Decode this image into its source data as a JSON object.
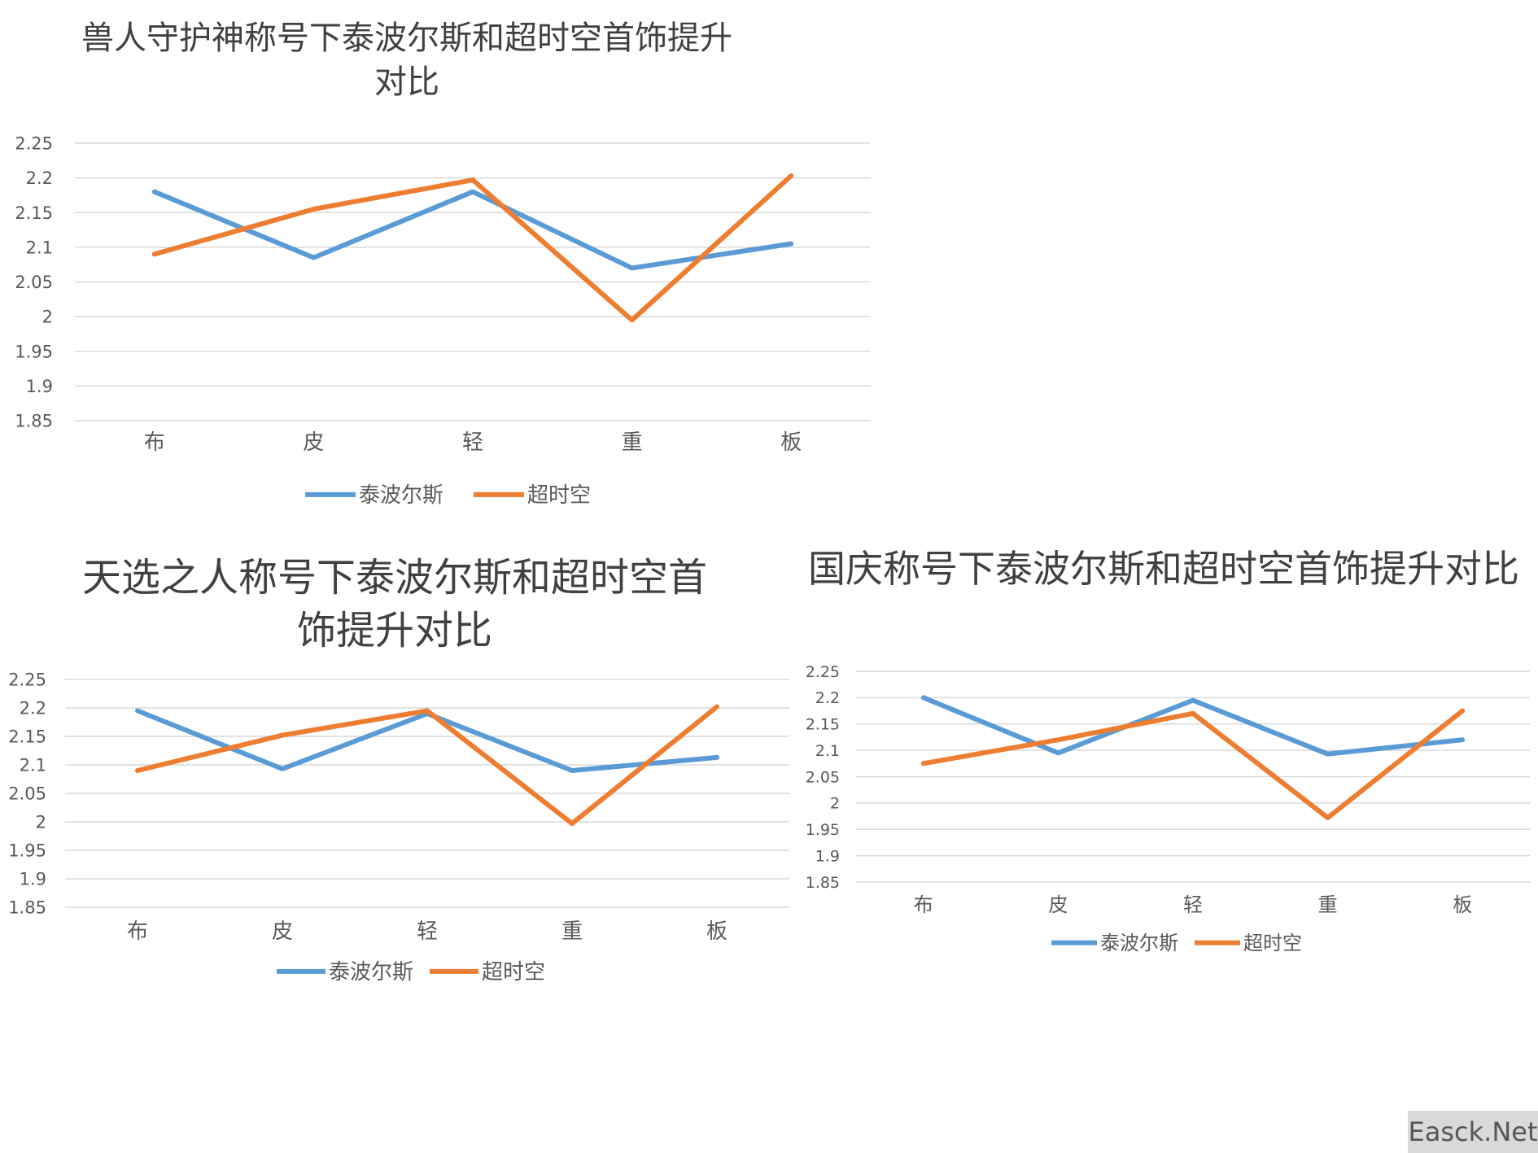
{
  "chart_data": [
    {
      "type": "line",
      "title": "兽人守护神称号下泰波尔斯和超时空首饰提升对比",
      "categories": [
        "布",
        "皮",
        "轻",
        "重",
        "板"
      ],
      "y_ticks": [
        "2.25",
        "2.2",
        "2.15",
        "2.1",
        "2.05",
        "2",
        "1.95",
        "1.9",
        "1.85"
      ],
      "ylim": [
        1.85,
        2.25
      ],
      "grid": true,
      "legend_position": "bottom",
      "series": [
        {
          "name": "泰波尔斯",
          "color": "#5b9bd5",
          "values": [
            2.18,
            2.085,
            2.18,
            2.07,
            2.105
          ]
        },
        {
          "name": "超时空",
          "color": "#ed7d31",
          "values": [
            2.09,
            2.155,
            2.197,
            1.995,
            2.203
          ]
        }
      ]
    },
    {
      "type": "line",
      "title": "天选之人称号下泰波尔斯和超时空首饰提升对比",
      "categories": [
        "布",
        "皮",
        "轻",
        "重",
        "板"
      ],
      "y_ticks": [
        "2.25",
        "2.2",
        "2.15",
        "2.1",
        "2.05",
        "2",
        "1.95",
        "1.9",
        "1.85"
      ],
      "ylim": [
        1.85,
        2.25
      ],
      "grid": true,
      "legend_position": "bottom",
      "series": [
        {
          "name": "泰波尔斯",
          "color": "#5b9bd5",
          "values": [
            2.195,
            2.093,
            2.19,
            2.09,
            2.113
          ]
        },
        {
          "name": "超时空",
          "color": "#ed7d31",
          "values": [
            2.09,
            2.152,
            2.195,
            1.997,
            2.202
          ]
        }
      ]
    },
    {
      "type": "line",
      "title": "国庆称号下泰波尔斯和超时空首饰提升对比",
      "categories": [
        "布",
        "皮",
        "轻",
        "重",
        "板"
      ],
      "y_ticks": [
        "2.25",
        "2.2",
        "2.15",
        "2.1",
        "2.05",
        "2",
        "1.95",
        "1.9",
        "1.85"
      ],
      "ylim": [
        1.85,
        2.25
      ],
      "grid": true,
      "legend_position": "bottom",
      "series": [
        {
          "name": "泰波尔斯",
          "color": "#5b9bd5",
          "values": [
            2.2,
            2.095,
            2.195,
            2.093,
            2.12
          ]
        },
        {
          "name": "超时空",
          "color": "#ed7d31",
          "values": [
            2.075,
            2.12,
            2.17,
            1.972,
            2.175
          ]
        }
      ]
    }
  ],
  "watermark": "Easck.Net"
}
